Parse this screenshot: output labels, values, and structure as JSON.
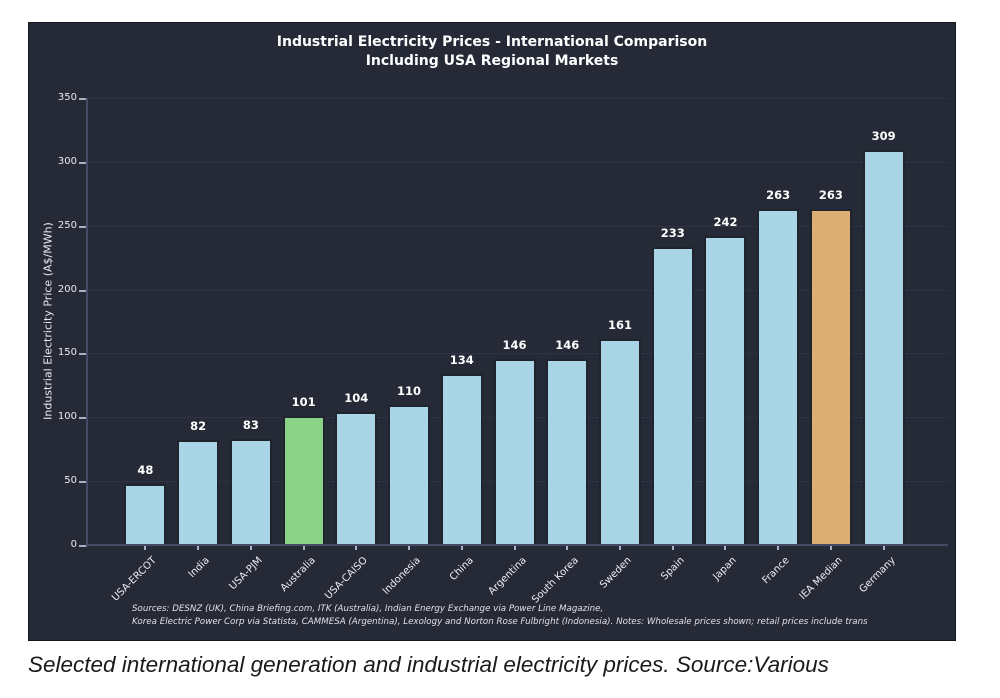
{
  "chart_data": {
    "type": "bar",
    "title": "Industrial Electricity Prices - International Comparison\nIncluding USA Regional Markets",
    "title_lines": [
      "Industrial Electricity Prices - International Comparison",
      "Including USA Regional Markets"
    ],
    "ylabel": "Industrial Electricity Price (A$/MWh)",
    "xlabel": "",
    "ylim": [
      0,
      350
    ],
    "yticks": [
      0,
      50,
      100,
      150,
      200,
      250,
      300,
      350
    ],
    "grid": true,
    "legend": false,
    "categories": [
      "USA-ERCOT",
      "India",
      "USA-PJM",
      "Australia",
      "USA-CAISO",
      "Indonesia",
      "China",
      "Argentina",
      "South Korea",
      "Sweden",
      "Spain",
      "Japan",
      "France",
      "IEA Median",
      "Germany"
    ],
    "values": [
      48,
      82,
      83,
      101,
      104,
      110,
      134,
      146,
      146,
      161,
      233,
      242,
      263,
      263,
      309
    ],
    "bar_colors": [
      "blue",
      "blue",
      "blue",
      "green",
      "blue",
      "blue",
      "blue",
      "blue",
      "blue",
      "blue",
      "blue",
      "blue",
      "blue",
      "tan",
      "blue"
    ],
    "palette": {
      "blue": "#a9d5e6",
      "green": "#8ad287",
      "tan": "#dcae74"
    },
    "style_colors": {
      "panel_background": "#262a37",
      "bar_edge": "#20242f",
      "axis": "#454c66",
      "gridline": "#2f3344",
      "text": "#e9eaee",
      "value_label": "#ffffff"
    },
    "source_lines": [
      "Sources: DESNZ (UK), China Briefing.com, ITK (Australia), Indian Energy Exchange via Power Line Magazine,",
      "Korea Electric Power Corp via Statista, CAMMESA (Argentina), Lexology and Norton Rose Fulbright (Indonesia). Notes: Wholesale prices shown; retail prices include trans"
    ]
  },
  "page": {
    "caption": "Selected international generation and industrial electricity prices. Source:Various"
  }
}
